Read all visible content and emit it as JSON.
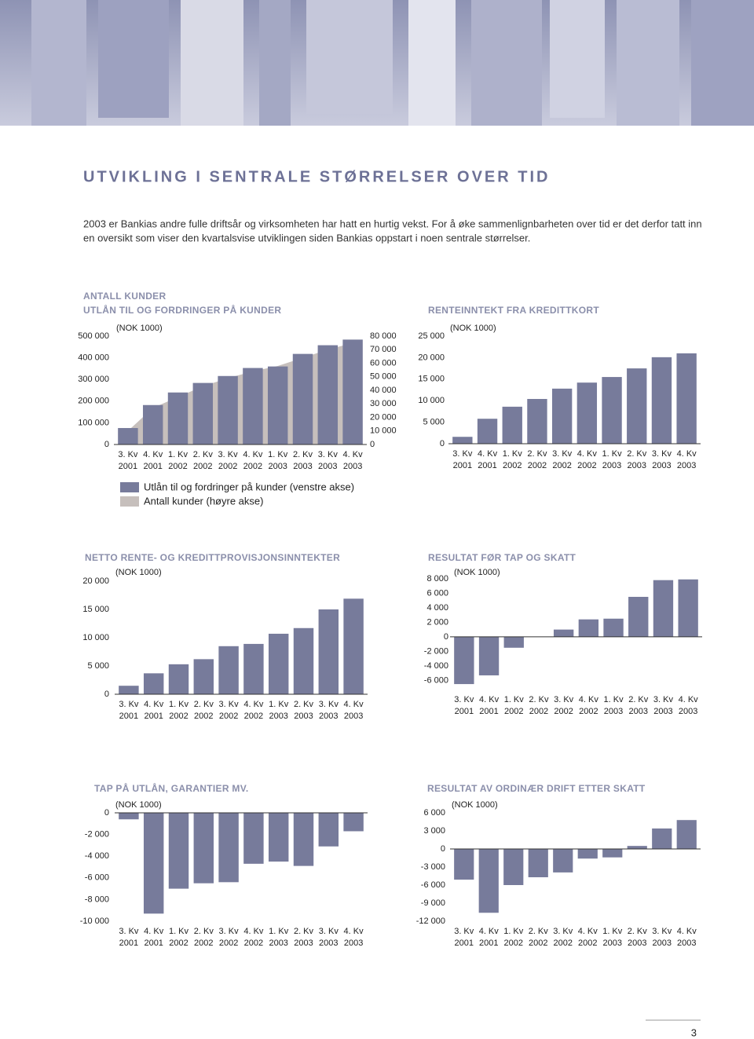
{
  "title": "UTVIKLING I SENTRALE STØRRELSER OVER TID",
  "intro": [
    "2003 er Bankias andre fulle driftsår og virksomheten har hatt en hurtig vekst. For å øke sammenlignbarheten over tid er det derfor tatt inn",
    "en oversikt som viser den kvartalsvise utviklingen siden Bankias oppstart i noen sentrale størrelser."
  ],
  "page_number": "3",
  "chart_data": [
    {
      "type": "combo",
      "title": [
        "ANTALL KUNDER",
        "UTLÅN TIL OG FORDRINGER PÅ KUNDER"
      ],
      "subtitle": "(NOK 1000)",
      "categories": [
        [
          "3. Kv",
          "2001"
        ],
        [
          "4. Kv",
          "2001"
        ],
        [
          "1. Kv",
          "2002"
        ],
        [
          "2. Kv",
          "2002"
        ],
        [
          "3. Kv",
          "2002"
        ],
        [
          "4. Kv",
          "2002"
        ],
        [
          "1. Kv",
          "2003"
        ],
        [
          "2. Kv",
          "2003"
        ],
        [
          "3. Kv",
          "2003"
        ],
        [
          "4. Kv",
          "2003"
        ]
      ],
      "series": [
        {
          "name": "Utlån til og fordringer på kunder (venstre akse)",
          "type": "bar",
          "color": "#777b9b",
          "values": [
            76000,
            182000,
            240000,
            284000,
            316000,
            353000,
            360000,
            418000,
            458000,
            484000
          ]
        },
        {
          "name": "Antall kunder (høyre akse)",
          "type": "area",
          "axis": "y2",
          "color": "#c6bfbc",
          "values": [
            10000,
            27000,
            35000,
            43000,
            49000,
            54000,
            58000,
            64000,
            70000,
            75000
          ]
        }
      ],
      "ylim": [
        0,
        500000
      ],
      "yticks": [
        0,
        {
          "value": 100000,
          "label": "100 000"
        },
        {
          "value": 200000,
          "label": "200 000"
        },
        {
          "value": 300000,
          "label": "300 000"
        },
        {
          "value": 400000,
          "label": "400 000"
        },
        {
          "value": 500000,
          "label": "500 000"
        }
      ],
      "y2lim": [
        0,
        80000
      ],
      "y2ticks": [
        0,
        {
          "value": 10000,
          "label": "10 000"
        },
        {
          "value": 20000,
          "label": "20 000"
        },
        {
          "value": 30000,
          "label": "30 000"
        },
        {
          "value": 40000,
          "label": "40 000"
        },
        {
          "value": 50000,
          "label": "50 000"
        },
        {
          "value": 60000,
          "label": "60 000"
        },
        {
          "value": 70000,
          "label": "70 000"
        },
        {
          "value": 80000,
          "label": "80 000"
        }
      ],
      "legend": "bottom"
    },
    {
      "type": "bar",
      "title": "RENTEINNTEKT FRA KREDITTKORT",
      "subtitle": "(NOK 1000)",
      "color": "#777b9b",
      "categories": [
        [
          "3. Kv",
          "2001"
        ],
        [
          "4. Kv",
          "2001"
        ],
        [
          "1. Kv",
          "2002"
        ],
        [
          "2. Kv",
          "2002"
        ],
        [
          "3. Kv",
          "2002"
        ],
        [
          "4. Kv",
          "2002"
        ],
        [
          "1. Kv",
          "2003"
        ],
        [
          "2. Kv",
          "2003"
        ],
        [
          "3. Kv",
          "2003"
        ],
        [
          "4. Kv",
          "2003"
        ]
      ],
      "values": [
        1600,
        5800,
        8600,
        10400,
        12800,
        14200,
        15500,
        17500,
        20100,
        21000
      ],
      "ylim": [
        0,
        25000
      ],
      "yticks": [
        0,
        {
          "value": 5000,
          "label": "5 000"
        },
        {
          "value": 10000,
          "label": "10 000"
        },
        {
          "value": 15000,
          "label": "15 000"
        },
        {
          "value": 20000,
          "label": "20 000"
        },
        {
          "value": 25000,
          "label": "25 000"
        }
      ]
    },
    {
      "type": "bar",
      "title": "NETTO RENTE- OG KREDITTPROVISJONSINNTEKTER",
      "subtitle": "(NOK 1000)",
      "color": "#777b9b",
      "categories": [
        [
          "3. Kv",
          "2001"
        ],
        [
          "4. Kv",
          "2001"
        ],
        [
          "1. Kv",
          "2002"
        ],
        [
          "2. Kv",
          "2002"
        ],
        [
          "3. Kv",
          "2002"
        ],
        [
          "4. Kv",
          "2002"
        ],
        [
          "1. Kv",
          "2003"
        ],
        [
          "2. Kv",
          "2003"
        ],
        [
          "3. Kv",
          "2003"
        ],
        [
          "4. Kv",
          "2003"
        ]
      ],
      "values": [
        1500,
        3700,
        5300,
        6200,
        8500,
        8900,
        10700,
        11700,
        15000,
        16900
      ],
      "ylim": [
        0,
        20000
      ],
      "yticks": [
        0,
        {
          "value": 5000,
          "label": "5 000"
        },
        {
          "value": 10000,
          "label": "10 000"
        },
        {
          "value": 15000,
          "label": "15 000"
        },
        {
          "value": 20000,
          "label": "20 000"
        }
      ]
    },
    {
      "type": "bar",
      "title": "RESULTAT FØR TAP OG SKATT",
      "subtitle": "(NOK 1000)",
      "color": "#777b9b",
      "categories": [
        [
          "3. Kv",
          "2001"
        ],
        [
          "4. Kv",
          "2001"
        ],
        [
          "1. Kv",
          "2002"
        ],
        [
          "2. Kv",
          "2002"
        ],
        [
          "3. Kv",
          "2002"
        ],
        [
          "4. Kv",
          "2002"
        ],
        [
          "1. Kv",
          "2003"
        ],
        [
          "2. Kv",
          "2003"
        ],
        [
          "3. Kv",
          "2003"
        ],
        [
          "4. Kv",
          "2003"
        ]
      ],
      "values": [
        -6500,
        -5300,
        -1500,
        0,
        1000,
        2400,
        2500,
        5500,
        7800,
        7900
      ],
      "ylim": [
        -6600,
        8200
      ],
      "yticks": [
        {
          "value": -6000,
          "label": "-6 000"
        },
        {
          "value": -4000,
          "label": "-4 000"
        },
        {
          "value": -2000,
          "label": "-2 000"
        },
        0,
        {
          "value": 2000,
          "label": "2 000"
        },
        {
          "value": 4000,
          "label": "4 000"
        },
        {
          "value": 6000,
          "label": "6 000"
        },
        {
          "value": 8000,
          "label": "8 000"
        }
      ]
    },
    {
      "type": "bar",
      "title": "TAP PÅ UTLÅN, GARANTIER MV.",
      "subtitle": "(NOK 1000)",
      "color": "#777b9b",
      "categories": [
        [
          "3. Kv",
          "2001"
        ],
        [
          "4. Kv",
          "2001"
        ],
        [
          "1. Kv",
          "2002"
        ],
        [
          "2. Kv",
          "2002"
        ],
        [
          "3. Kv",
          "2002"
        ],
        [
          "4. Kv",
          "2002"
        ],
        [
          "1. Kv",
          "2003"
        ],
        [
          "2. Kv",
          "2003"
        ],
        [
          "3. Kv",
          "2003"
        ],
        [
          "4. Kv",
          "2003"
        ]
      ],
      "values": [
        -600,
        -9300,
        -7000,
        -6500,
        -6400,
        -4700,
        -4500,
        -4900,
        -3100,
        -1700
      ],
      "ylim": [
        -10000,
        0
      ],
      "yticks": [
        {
          "value": -10000,
          "label": "-10 000"
        },
        {
          "value": -8000,
          "label": "-8 000"
        },
        {
          "value": -6000,
          "label": "-6 000"
        },
        {
          "value": -4000,
          "label": "-4 000"
        },
        {
          "value": -2000,
          "label": "-2 000"
        },
        0
      ]
    },
    {
      "type": "bar",
      "title": "RESULTAT AV ORDINÆR DRIFT ETTER SKATT",
      "subtitle": "(NOK 1000)",
      "color": "#777b9b",
      "categories": [
        [
          "3. Kv",
          "2001"
        ],
        [
          "4. Kv",
          "2001"
        ],
        [
          "1. Kv",
          "2002"
        ],
        [
          "2. Kv",
          "2002"
        ],
        [
          "3. Kv",
          "2002"
        ],
        [
          "4. Kv",
          "2002"
        ],
        [
          "1. Kv",
          "2003"
        ],
        [
          "2. Kv",
          "2003"
        ],
        [
          "3. Kv",
          "2003"
        ],
        [
          "4. Kv",
          "2003"
        ]
      ],
      "values": [
        -5100,
        -10600,
        -6000,
        -4700,
        -3900,
        -1600,
        -1400,
        500,
        3400,
        4800
      ],
      "ylim": [
        -12000,
        6000
      ],
      "yticks": [
        {
          "value": -12000,
          "label": "-12 000"
        },
        {
          "value": -9000,
          "label": "-9 000"
        },
        {
          "value": -6000,
          "label": "-6 000"
        },
        {
          "value": -3000,
          "label": "-3 000"
        },
        0,
        {
          "value": 3000,
          "label": "3 000"
        },
        {
          "value": 6000,
          "label": "6 000"
        }
      ]
    }
  ]
}
